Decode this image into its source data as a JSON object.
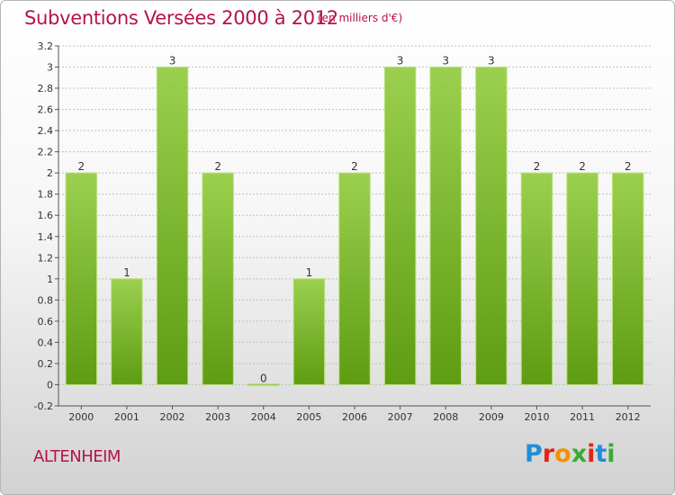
{
  "header": {
    "title": "Subventions Versées 2000 à 2012",
    "subtitle": "(en milliers d'€)"
  },
  "footer": {
    "town": "ALTENHEIM",
    "logo": "Proxiti",
    "logo_colors": [
      "#1f8fd8",
      "#e3241b",
      "#f39200",
      "#3aa935",
      "#e3241b",
      "#1f8fd8",
      "#3aa935"
    ]
  },
  "colors": {
    "bar_top": "#9bd04e",
    "bar_bottom": "#5e9c12",
    "title": "#b5134b",
    "grid": "#bfbfbf"
  },
  "chart_data": {
    "type": "bar",
    "categories": [
      "2000",
      "2001",
      "2002",
      "2003",
      "2004",
      "2005",
      "2006",
      "2007",
      "2008",
      "2009",
      "2010",
      "2011",
      "2012"
    ],
    "values": [
      2,
      1,
      3,
      2,
      0,
      1,
      2,
      3,
      3,
      3,
      2,
      2,
      2
    ],
    "data_labels": [
      "2",
      "1",
      "3",
      "2",
      "0",
      "1",
      "2",
      "3",
      "3",
      "3",
      "2",
      "2",
      "2"
    ],
    "y_ticks": [
      -0.2,
      0,
      0.2,
      0.4,
      0.6,
      0.8,
      1,
      1.2,
      1.4,
      1.6,
      1.8,
      2,
      2.2,
      2.4,
      2.6,
      2.8,
      3,
      3.2
    ],
    "y_tick_labels": [
      "-0.2",
      "0",
      "0.2",
      "0.4",
      "0.6",
      "0.8",
      "1",
      "1.2",
      "1.4",
      "1.6",
      "1.8",
      "2",
      "2.2",
      "2.4",
      "2.6",
      "2.8",
      "3",
      "3.2"
    ],
    "ylim": [
      -0.2,
      3.2
    ],
    "grid": true,
    "title": "Subventions Versées 2000 à 2012",
    "xlabel": "",
    "ylabel": ""
  }
}
